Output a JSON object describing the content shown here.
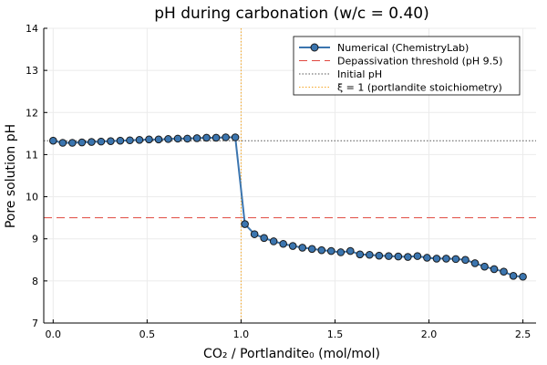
{
  "chart_data": {
    "type": "line",
    "title": "pH during carbonation (w/c = 0.40)",
    "xlabel": "CO₂ / Portlandite₀  (mol/mol)",
    "ylabel": "Pore solution pH",
    "xlim": [
      -0.05,
      2.57
    ],
    "ylim": [
      7,
      14
    ],
    "xticks": [
      "0.0",
      "0.5",
      "1.0",
      "1.5",
      "2.0",
      "2.5"
    ],
    "xtick_values": [
      0,
      0.5,
      1.0,
      1.5,
      2.0,
      2.5
    ],
    "yticks": [
      "7",
      "8",
      "9",
      "10",
      "11",
      "12",
      "13",
      "14"
    ],
    "ytick_values": [
      7,
      8,
      9,
      10,
      11,
      12,
      13,
      14
    ],
    "grid": true,
    "legend_position": "top-right",
    "series": [
      {
        "name": "Numerical (ChemistryLab)",
        "color": "#3b75af",
        "x_start": 0,
        "x_end": 2.5,
        "n_points": 50,
        "values": [
          11.33,
          11.28,
          11.28,
          11.29,
          11.3,
          11.31,
          11.32,
          11.33,
          11.34,
          11.35,
          11.36,
          11.36,
          11.37,
          11.38,
          11.38,
          11.39,
          11.4,
          11.4,
          11.41,
          11.41,
          9.35,
          9.11,
          9.02,
          8.94,
          8.88,
          8.83,
          8.79,
          8.76,
          8.73,
          8.71,
          8.68,
          8.71,
          8.63,
          8.62,
          8.6,
          8.59,
          8.58,
          8.57,
          8.59,
          8.55,
          8.53,
          8.53,
          8.52,
          8.5,
          8.42,
          8.34,
          8.28,
          8.22,
          8.12,
          8.1
        ]
      }
    ],
    "reference_lines": [
      {
        "name": "Depassivation threshold (pH 9.5)",
        "orientation": "horizontal",
        "value": 9.5,
        "color": "#e0473f",
        "style": "dashed"
      },
      {
        "name": "Initial pH",
        "orientation": "horizontal",
        "value": 11.33,
        "color": "#555555",
        "style": "dotted"
      },
      {
        "name": "ξ = 1 (portlandite stoichiometry)",
        "orientation": "vertical",
        "value": 1.0,
        "color": "#f5a623",
        "style": "dotted"
      }
    ]
  }
}
